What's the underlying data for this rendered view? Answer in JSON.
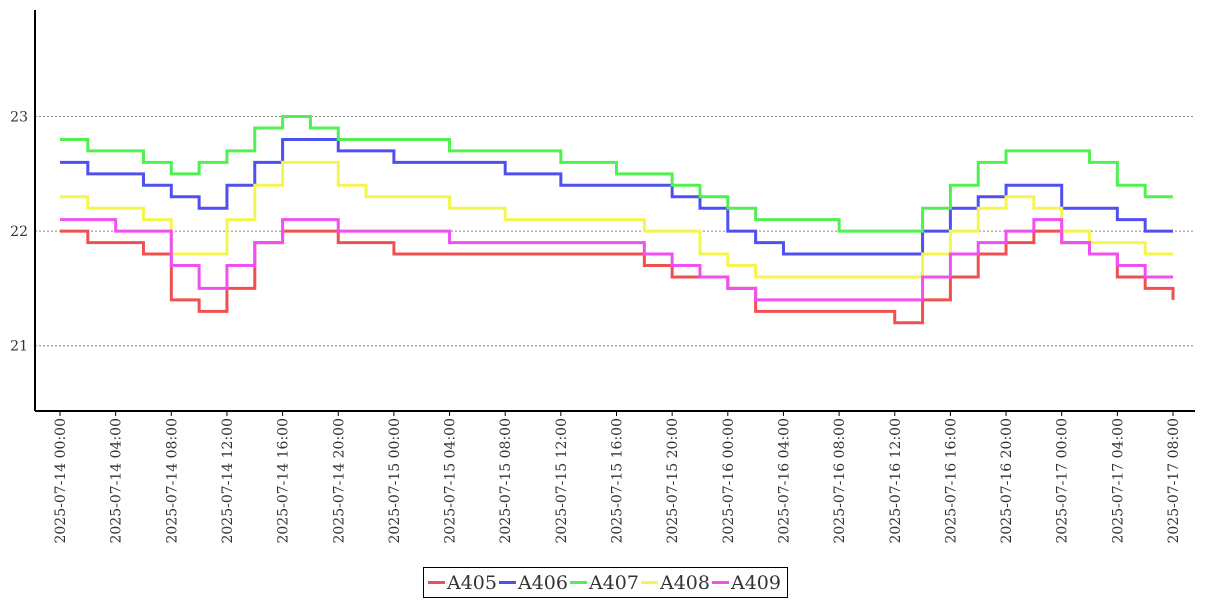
{
  "chart_data": {
    "type": "line",
    "title": "",
    "xlabel": "",
    "ylabel": "",
    "ylim": [
      20.43,
      23.93
    ],
    "y_ticks": [
      "21",
      "22",
      "23"
    ],
    "y_tick_values": [
      21,
      22,
      23
    ],
    "x_tick_labels": [
      "2025-07-14 00:00",
      "2025-07-14 04:00",
      "2025-07-14 08:00",
      "2025-07-14 12:00",
      "2025-07-14 16:00",
      "2025-07-14 20:00",
      "2025-07-15 00:00",
      "2025-07-15 04:00",
      "2025-07-15 08:00",
      "2025-07-15 12:00",
      "2025-07-15 16:00",
      "2025-07-15 20:00",
      "2025-07-16 00:00",
      "2025-07-16 04:00",
      "2025-07-16 08:00",
      "2025-07-16 12:00",
      "2025-07-16 16:00",
      "2025-07-16 20:00",
      "2025-07-17 00:00",
      "2025-07-17 04:00",
      "2025-07-17 08:00"
    ],
    "x_unit": "hours since 2025-07-14 00:00",
    "xlim": [
      0,
      80
    ],
    "grid": "horizontal dotted",
    "legend_placement": "bottom-center",
    "x": [
      0,
      2,
      4,
      6,
      8,
      10,
      12,
      14,
      16,
      18,
      20,
      22,
      24,
      28,
      32,
      36,
      40,
      42,
      44,
      46,
      48,
      50,
      52,
      56,
      60,
      62,
      64,
      66,
      68,
      70,
      72,
      74,
      76,
      78,
      80
    ],
    "series": [
      {
        "name": "A405",
        "color": "#f05050",
        "values": [
          22.0,
          21.9,
          21.9,
          21.8,
          21.4,
          21.3,
          21.5,
          21.9,
          22.0,
          22.0,
          21.9,
          21.9,
          21.8,
          21.8,
          21.8,
          21.8,
          21.8,
          21.7,
          21.6,
          21.6,
          21.5,
          21.3,
          21.3,
          21.3,
          21.2,
          21.4,
          21.6,
          21.8,
          21.9,
          22.0,
          21.9,
          21.8,
          21.6,
          21.5,
          21.4
        ]
      },
      {
        "name": "A406",
        "color": "#5050f0",
        "values": [
          22.6,
          22.5,
          22.5,
          22.4,
          22.3,
          22.2,
          22.4,
          22.6,
          22.8,
          22.8,
          22.7,
          22.7,
          22.6,
          22.6,
          22.5,
          22.4,
          22.4,
          22.4,
          22.3,
          22.2,
          22.0,
          21.9,
          21.8,
          21.8,
          21.8,
          22.0,
          22.2,
          22.3,
          22.4,
          22.4,
          22.2,
          22.2,
          22.1,
          22.0,
          22.0
        ]
      },
      {
        "name": "A407",
        "color": "#50f050",
        "values": [
          22.8,
          22.7,
          22.7,
          22.6,
          22.5,
          22.6,
          22.7,
          22.9,
          23.0,
          22.9,
          22.8,
          22.8,
          22.8,
          22.7,
          22.7,
          22.6,
          22.5,
          22.5,
          22.4,
          22.3,
          22.2,
          22.1,
          22.1,
          22.0,
          22.0,
          22.2,
          22.4,
          22.6,
          22.7,
          22.7,
          22.7,
          22.6,
          22.4,
          22.3,
          22.3
        ]
      },
      {
        "name": "A408",
        "color": "#f5f550",
        "values": [
          22.3,
          22.2,
          22.2,
          22.1,
          21.8,
          21.8,
          22.1,
          22.4,
          22.6,
          22.6,
          22.4,
          22.3,
          22.3,
          22.2,
          22.1,
          22.1,
          22.1,
          22.0,
          22.0,
          21.8,
          21.7,
          21.6,
          21.6,
          21.6,
          21.6,
          21.8,
          22.0,
          22.2,
          22.3,
          22.2,
          22.0,
          21.9,
          21.9,
          21.8,
          21.8
        ]
      },
      {
        "name": "A409",
        "color": "#f050f0",
        "values": [
          22.1,
          22.1,
          22.0,
          22.0,
          21.7,
          21.5,
          21.7,
          21.9,
          22.1,
          22.1,
          22.0,
          22.0,
          22.0,
          21.9,
          21.9,
          21.9,
          21.9,
          21.8,
          21.7,
          21.6,
          21.5,
          21.4,
          21.4,
          21.4,
          21.4,
          21.6,
          21.8,
          21.9,
          22.0,
          22.1,
          21.9,
          21.8,
          21.7,
          21.6,
          21.6
        ]
      }
    ]
  }
}
